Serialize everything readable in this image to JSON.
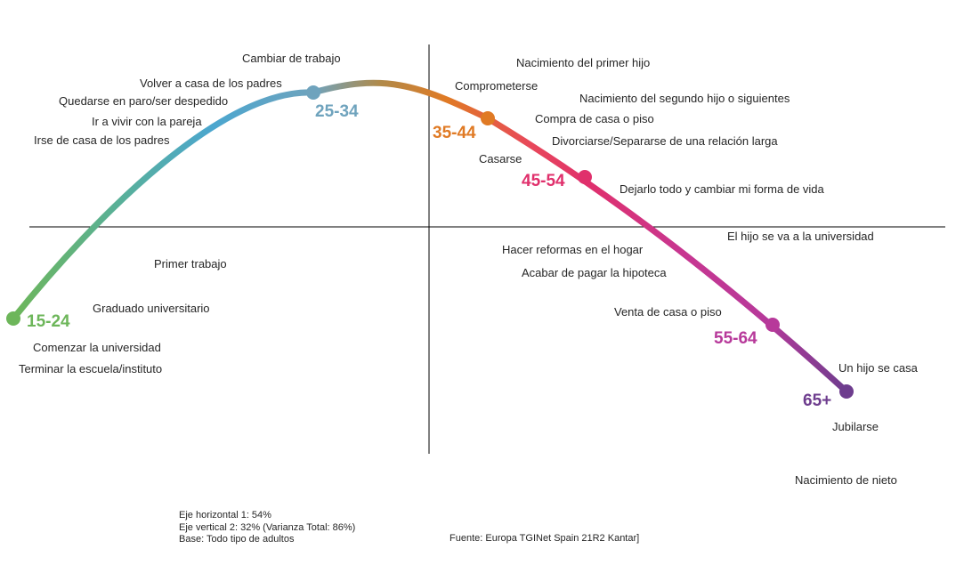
{
  "axes_notes": {
    "horizontal": "Eje horizontal 1: 54%",
    "vertical": "Eje vertical 2: 32% (Varianza Total: 86%)",
    "base": "Base: Todo tipo de adultos"
  },
  "source": "Fuente: Europa TGINet  Spain 21R2 Kantar]",
  "colors": {
    "age_15_24": "#6db65a",
    "age_25_34": "#6fa3bd",
    "age_35_44": "#e07a24",
    "age_45_54": "#e0306c",
    "age_55_64": "#b7399a",
    "age_65_plus": "#6e3d8e"
  },
  "age_groups": [
    {
      "id": "15-24",
      "label": "15-24",
      "color": "#6db65a"
    },
    {
      "id": "25-34",
      "label": "25-34",
      "color": "#6fa3bd"
    },
    {
      "id": "35-44",
      "label": "35-44",
      "color": "#e07a24"
    },
    {
      "id": "45-54",
      "label": "45-54",
      "color": "#e0306c"
    },
    {
      "id": "55-64",
      "label": "55-64",
      "color": "#b7399a"
    },
    {
      "id": "65-plus",
      "label": "65+",
      "color": "#6e3d8e"
    }
  ],
  "events": [
    "Cambiar de trabajo",
    "Volver a casa de los padres",
    "Quedarse en paro/ser despedido",
    "Ir a vivir con la pareja",
    "Irse de casa de los padres",
    "Nacimiento del primer hijo",
    "Comprometerse",
    "Nacimiento del segundo hijo o siguientes",
    "Compra de casa o piso",
    "Divorciarse/Separarse de una relación larga",
    "Casarse",
    "Dejarlo todo y cambiar mi forma de vida",
    "El hijo se va a la universidad",
    "Hacer reformas en el hogar",
    "Acabar de pagar la hipoteca",
    "Primer trabajo",
    "Graduado universitario",
    "Venta de casa o piso",
    "Comenzar la universidad",
    "Terminar la escuela/instituto",
    "Un hijo se casa",
    "Jubilarse",
    "Nacimiento de nieto"
  ]
}
